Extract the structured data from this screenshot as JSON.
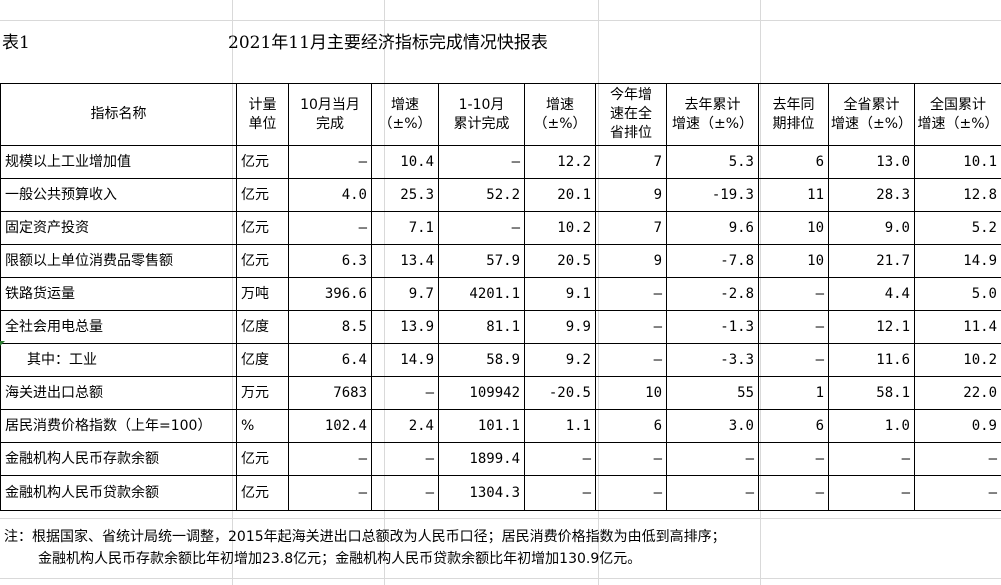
{
  "header": {
    "table_label": "表1",
    "title": "2021年11月主要经济指标完成情况快报表"
  },
  "table": {
    "columns": [
      "指标名称",
      "计量\n单位",
      "10月当月\n完成",
      "增速\n（±%）",
      "1-10月\n累计完成",
      "增速\n（±%）",
      "今年增\n速在全\n省排位",
      "去年累计\n增速（±%）",
      "去年同\n期排位",
      "全省累计\n增速（±%）",
      "全国累计\n增速（±%）"
    ],
    "rows": [
      {
        "name": "规模以上工业增加值",
        "cells": [
          "亿元",
          "—",
          "10.4",
          "—",
          "12.2",
          "7",
          "5.3",
          "6",
          "13.0",
          "10.1"
        ]
      },
      {
        "name": "一般公共预算收入",
        "cells": [
          "亿元",
          "4.0",
          "25.3",
          "52.2",
          "20.1",
          "9",
          "-19.3",
          "11",
          "28.3",
          "12.8"
        ]
      },
      {
        "name": "固定资产投资",
        "cells": [
          "亿元",
          "—",
          "7.1",
          "—",
          "10.2",
          "7",
          "9.6",
          "10",
          "9.0",
          "5.2"
        ]
      },
      {
        "name": "限额以上单位消费品零售额",
        "cells": [
          "亿元",
          "6.3",
          "13.4",
          "57.9",
          "20.5",
          "9",
          "-7.8",
          "10",
          "21.7",
          "14.9"
        ]
      },
      {
        "name": "铁路货运量",
        "cells": [
          "万吨",
          "396.6",
          "9.7",
          "4201.1",
          "9.1",
          "—",
          "-2.8",
          "—",
          "4.4",
          "5.0"
        ]
      },
      {
        "name": "全社会用电总量",
        "cells": [
          "亿度",
          "8.5",
          "13.9",
          "81.1",
          "9.9",
          "—",
          "-1.3",
          "—",
          "12.1",
          "11.4"
        ]
      },
      {
        "name": "其中：工业",
        "indent": true,
        "cells": [
          "亿度",
          "6.4",
          "14.9",
          "58.9",
          "9.2",
          "—",
          "-3.3",
          "—",
          "11.6",
          "10.2"
        ]
      },
      {
        "name": "海关进出口总额",
        "cells": [
          "万元",
          "7683",
          "—",
          "109942",
          "-20.5",
          "10",
          "55",
          "1",
          "58.1",
          "22.0"
        ]
      },
      {
        "name": "居民消费价格指数（上年=100）",
        "cells": [
          "%",
          "102.4",
          "2.4",
          "101.1",
          "1.1",
          "6",
          "3.0",
          "6",
          "1.0",
          "0.9"
        ]
      },
      {
        "name": "金融机构人民币存款余额",
        "cells": [
          "亿元",
          "—",
          "—",
          "1899.4",
          "—",
          "—",
          "—",
          "—",
          "—",
          "—"
        ]
      },
      {
        "name": "金融机构人民币贷款余额",
        "cells": [
          "亿元",
          "—",
          "—",
          "1304.3",
          "—",
          "—",
          "—",
          "—",
          "—",
          "—"
        ]
      }
    ]
  },
  "notes": {
    "line1": "注：根据国家、省统计局统一调整，2015年起海关进出口总额改为人民币口径；居民消费价格指数为由低到高排序；",
    "line2": "金融机构人民币存款余额比年初增加23.8亿元；金融机构人民币贷款余额比年初增加130.9亿元。"
  }
}
